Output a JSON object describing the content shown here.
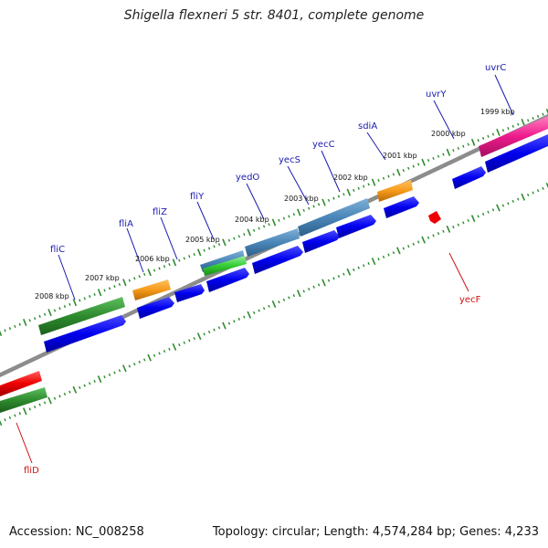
{
  "title": "Shigella flexneri 5 str. 8401, complete genome",
  "footer": {
    "accession": "Accession: NC_008258",
    "stats": "Topology: circular; Length: 4,574,284 bp; Genes: 4,233"
  },
  "colors": {
    "backbone": "#8c8c8c",
    "tick": "#2e8b2e",
    "label_forward": "#1a1ab0",
    "label_reverse": "#cc1111"
  },
  "scale_labels": [
    "1999 kbp",
    "2000 kbp",
    "2001 kbp",
    "2002 kbp",
    "2003 kbp",
    "2004 kbp",
    "2005 kbp",
    "2006 kbp",
    "2007 kbp",
    "2008 kbp"
  ],
  "gene_labels": {
    "forward": [
      "uvrC",
      "uvrY",
      "sdiA",
      "yecC",
      "yecS",
      "yedO",
      "fliY",
      "fliZ",
      "fliA",
      "fliC"
    ],
    "reverse": [
      "yecF",
      "fliD"
    ]
  }
}
